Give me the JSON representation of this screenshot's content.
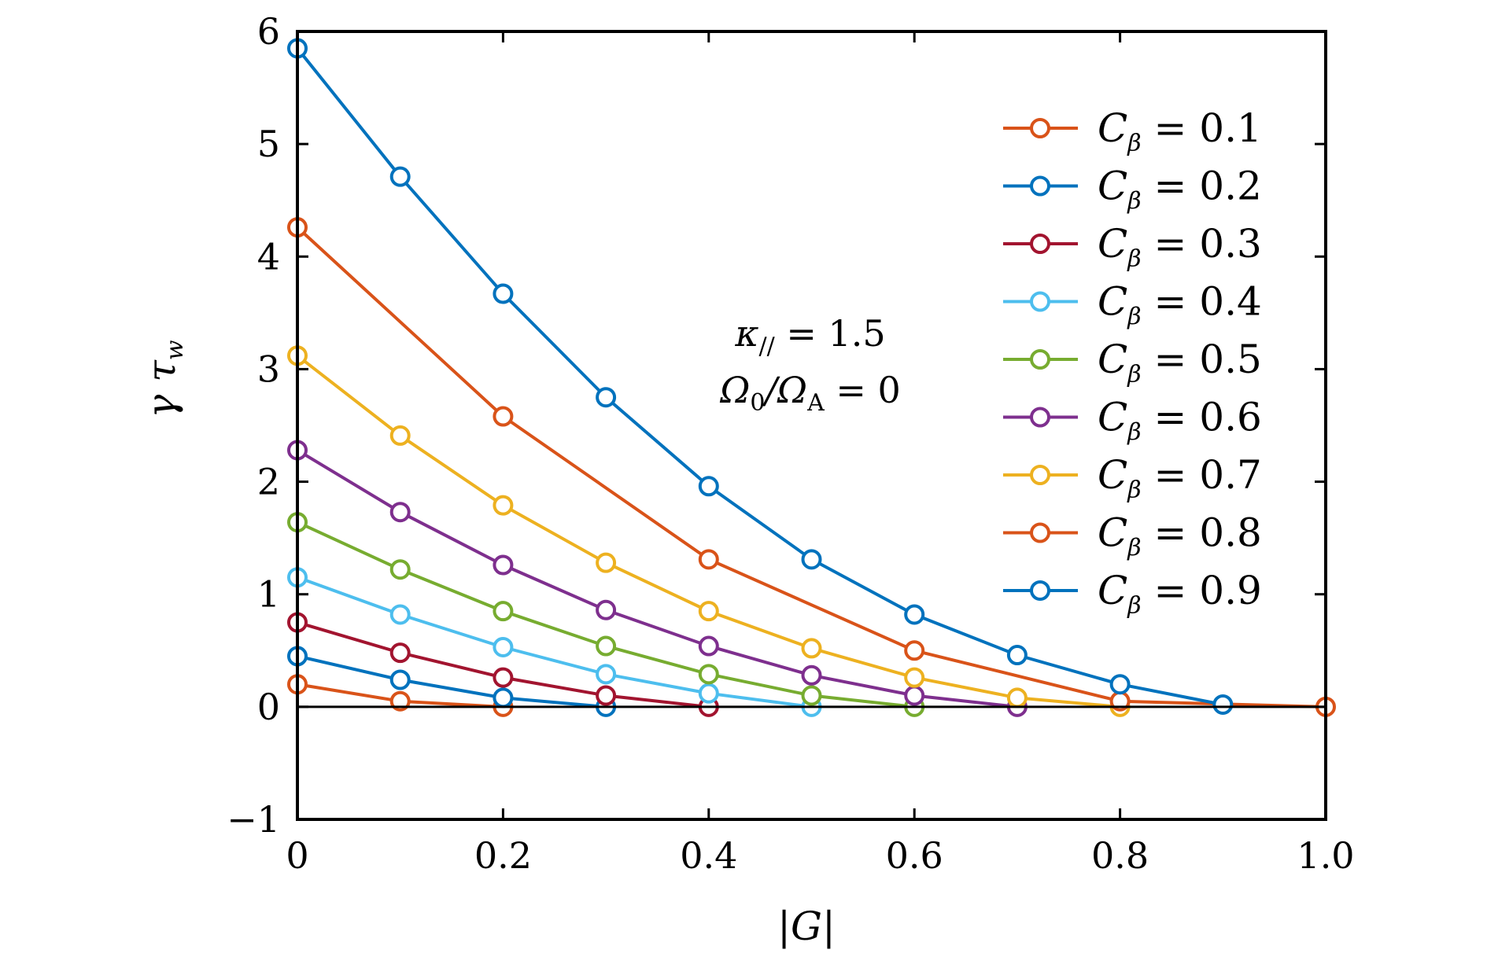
{
  "chart_data": {
    "type": "line",
    "xlabel": "|G|",
    "ylabel": {
      "main": "γ τ",
      "sub": "w"
    },
    "xlim": [
      0,
      1.0
    ],
    "ylim": [
      -1,
      6
    ],
    "xticks": [
      0,
      0.2,
      0.4,
      0.6,
      0.8,
      1.0
    ],
    "xtick_labels": [
      "0",
      "0.2",
      "0.4",
      "0.6",
      "0.8",
      "1.0"
    ],
    "yticks": [
      -1,
      0,
      1,
      2,
      3,
      4,
      5,
      6
    ],
    "ytick_labels": [
      "−1",
      "0",
      "1",
      "2",
      "3",
      "4",
      "5",
      "6"
    ],
    "legend_position": "right",
    "annotation": {
      "line1": {
        "main": "κ",
        "sub": "//",
        "rest": " = 1.5"
      },
      "line2": {
        "a": "Ω",
        "a_sub": "0",
        "mid": "/Ω",
        "b_sub": "A",
        "rest": " = 0"
      }
    },
    "legend_prefix": "C",
    "legend_sub": "β",
    "series": [
      {
        "name": "0.1",
        "label": " = 0.1",
        "color": "#D95319",
        "x": [
          0,
          0.1,
          0.2
        ],
        "values": [
          0.2,
          0.05,
          0.0
        ]
      },
      {
        "name": "0.2",
        "label": " = 0.2",
        "color": "#0072BD",
        "x": [
          0,
          0.1,
          0.2,
          0.3
        ],
        "values": [
          0.45,
          0.24,
          0.08,
          0.0
        ]
      },
      {
        "name": "0.3",
        "label": " = 0.3",
        "color": "#A2142F",
        "x": [
          0,
          0.1,
          0.2,
          0.3,
          0.4
        ],
        "values": [
          0.75,
          0.48,
          0.26,
          0.1,
          0.0
        ]
      },
      {
        "name": "0.4",
        "label": " = 0.4",
        "color": "#4DBEEE",
        "x": [
          0,
          0.1,
          0.2,
          0.3,
          0.4,
          0.5
        ],
        "values": [
          1.15,
          0.82,
          0.53,
          0.29,
          0.12,
          0.0
        ]
      },
      {
        "name": "0.5",
        "label": " = 0.5",
        "color": "#77AC30",
        "x": [
          0,
          0.1,
          0.2,
          0.3,
          0.4,
          0.5,
          0.6
        ],
        "values": [
          1.64,
          1.22,
          0.85,
          0.54,
          0.29,
          0.1,
          0.0
        ]
      },
      {
        "name": "0.6",
        "label": " = 0.6",
        "color": "#7E2F8E",
        "x": [
          0,
          0.1,
          0.2,
          0.3,
          0.4,
          0.5,
          0.6,
          0.7
        ],
        "values": [
          2.28,
          1.73,
          1.26,
          0.86,
          0.54,
          0.28,
          0.1,
          0.0
        ]
      },
      {
        "name": "0.7",
        "label": " = 0.7",
        "color": "#EDB120",
        "x": [
          0,
          0.1,
          0.2,
          0.3,
          0.4,
          0.5,
          0.6,
          0.7,
          0.8
        ],
        "values": [
          3.12,
          2.41,
          1.79,
          1.28,
          0.85,
          0.52,
          0.26,
          0.08,
          0.0
        ]
      },
      {
        "name": "0.8",
        "label": " = 0.8",
        "color": "#D95319",
        "x": [
          0,
          0.2,
          0.4,
          0.6,
          0.8,
          1.0
        ],
        "values": [
          4.26,
          2.58,
          1.31,
          0.5,
          0.05,
          0.0
        ]
      },
      {
        "name": "0.9",
        "label": " = 0.9",
        "color": "#0072BD",
        "x": [
          0,
          0.1,
          0.2,
          0.3,
          0.4,
          0.5,
          0.6,
          0.7,
          0.8,
          0.9
        ],
        "values": [
          5.85,
          4.71,
          3.67,
          2.75,
          1.96,
          1.31,
          0.82,
          0.46,
          0.2,
          0.02
        ]
      }
    ]
  }
}
